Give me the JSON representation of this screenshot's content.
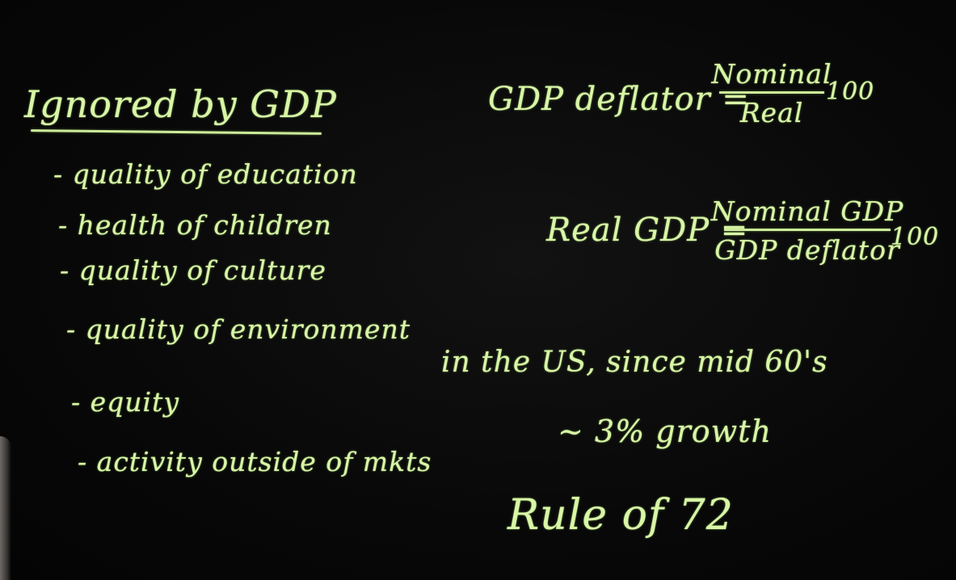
{
  "heading": "Ignored by GDP",
  "bullets": [
    "- quality of education",
    "- health of children",
    "- quality of culture",
    "- quality of environment",
    "- equity",
    "- activity outside of mkts"
  ],
  "formulas": {
    "deflator": {
      "label": "GDP deflator =",
      "numerator": "Nominal",
      "denominator": "Real",
      "multiplier": "100"
    },
    "real_gdp": {
      "label": "Real GDP =",
      "numerator": "Nominal GDP",
      "denominator": "GDP deflator",
      "multiplier": "100"
    }
  },
  "notes": {
    "us_since": "in the US, since mid 60's",
    "growth": "~ 3% growth",
    "rule": "Rule of 72"
  },
  "colors": {
    "chalk": "#d9f5a6",
    "board": "#070707"
  }
}
